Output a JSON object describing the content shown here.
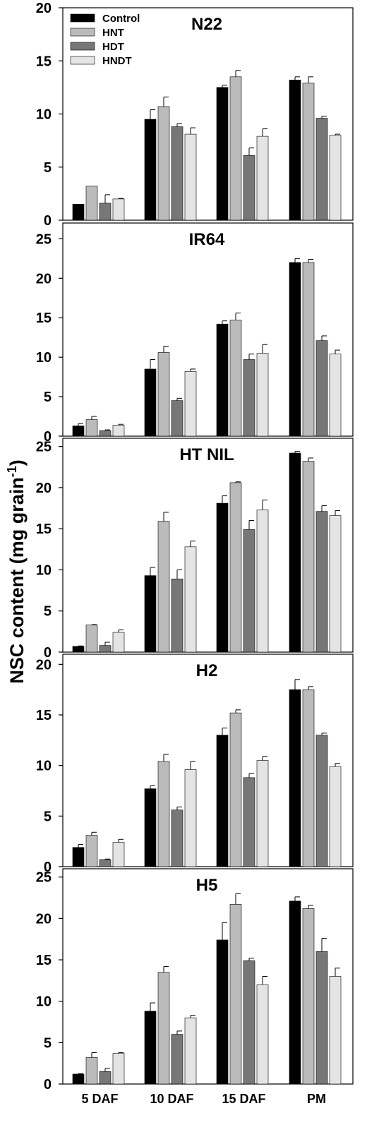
{
  "figure": {
    "ylabel_main": "NSC content (mg grain",
    "ylabel_sup": "-1",
    "ylabel_close": ")"
  },
  "chart_data": [
    {
      "type": "bar",
      "title": "N22",
      "categories": [
        "5 DAF",
        "10 DAF",
        "15 DAF",
        "PM"
      ],
      "ylim": [
        0,
        20
      ],
      "yticks": [
        0,
        5,
        10,
        15,
        20
      ],
      "legend": "top-left",
      "series": [
        {
          "name": "Control",
          "color": "#000000",
          "values": [
            1.5,
            9.5,
            12.5,
            13.2
          ],
          "errors": [
            0,
            0.9,
            0.2,
            0.3
          ]
        },
        {
          "name": "HNT",
          "color": "#bbbbbb",
          "values": [
            3.2,
            10.7,
            13.5,
            12.9
          ],
          "errors": [
            0,
            0.9,
            0.6,
            0.6
          ]
        },
        {
          "name": "HDT",
          "color": "#777777",
          "values": [
            1.6,
            8.8,
            6.1,
            9.6
          ],
          "errors": [
            0.8,
            0.3,
            0.7,
            0.2
          ]
        },
        {
          "name": "HNDT",
          "color": "#e4e4e4",
          "values": [
            2.0,
            8.1,
            7.9,
            8.0
          ],
          "errors": [
            0.05,
            0.6,
            0.7,
            0.1
          ]
        }
      ]
    },
    {
      "type": "bar",
      "title": "IR64",
      "categories": [
        "5 DAF",
        "10 DAF",
        "15 DAF",
        "PM"
      ],
      "ylim": [
        0,
        27
      ],
      "yticks": [
        0,
        5,
        10,
        15,
        20,
        25
      ],
      "series": [
        {
          "name": "Control",
          "color": "#000000",
          "values": [
            1.3,
            8.5,
            14.2,
            22.0
          ],
          "errors": [
            0.3,
            1.2,
            0.4,
            0.5
          ]
        },
        {
          "name": "HNT",
          "color": "#bbbbbb",
          "values": [
            2.1,
            10.6,
            14.7,
            22.0
          ],
          "errors": [
            0.4,
            0.8,
            0.9,
            0.4
          ]
        },
        {
          "name": "HDT",
          "color": "#777777",
          "values": [
            0.7,
            4.5,
            9.7,
            12.1
          ],
          "errors": [
            0.1,
            0.3,
            0.7,
            0.6
          ]
        },
        {
          "name": "HNDT",
          "color": "#e4e4e4",
          "values": [
            1.4,
            8.2,
            10.5,
            10.4
          ],
          "errors": [
            0.1,
            0.3,
            1.1,
            0.5
          ]
        }
      ]
    },
    {
      "type": "bar",
      "title": "HT NIL",
      "categories": [
        "5 DAF",
        "10 DAF",
        "15 DAF",
        "PM"
      ],
      "ylim": [
        0,
        26
      ],
      "yticks": [
        0,
        5,
        10,
        15,
        20,
        25
      ],
      "series": [
        {
          "name": "Control",
          "color": "#000000",
          "values": [
            0.7,
            9.3,
            18.1,
            24.2
          ],
          "errors": [
            0.05,
            1.0,
            0.9,
            0.2
          ]
        },
        {
          "name": "HNT",
          "color": "#bbbbbb",
          "values": [
            3.3,
            15.9,
            20.6,
            23.2
          ],
          "errors": [
            0.05,
            1.1,
            0.1,
            0.4
          ]
        },
        {
          "name": "HDT",
          "color": "#777777",
          "values": [
            0.8,
            8.9,
            14.9,
            17.1
          ],
          "errors": [
            0.4,
            1.1,
            1.1,
            0.7
          ]
        },
        {
          "name": "HNDT",
          "color": "#e4e4e4",
          "values": [
            2.4,
            12.8,
            17.3,
            16.6
          ],
          "errors": [
            0.3,
            0.7,
            1.2,
            0.6
          ]
        }
      ]
    },
    {
      "type": "bar",
      "title": "H2",
      "categories": [
        "5 DAF",
        "10 DAF",
        "15 DAF",
        "PM"
      ],
      "ylim": [
        0,
        21
      ],
      "yticks": [
        0,
        5,
        10,
        15,
        20
      ],
      "series": [
        {
          "name": "Control",
          "color": "#000000",
          "values": [
            1.9,
            7.7,
            13.0,
            17.5
          ],
          "errors": [
            0.3,
            0.3,
            0.7,
            1.0
          ]
        },
        {
          "name": "HNT",
          "color": "#bbbbbb",
          "values": [
            3.1,
            10.4,
            15.2,
            17.5
          ],
          "errors": [
            0.3,
            0.7,
            0.3,
            0.3
          ]
        },
        {
          "name": "HDT",
          "color": "#777777",
          "values": [
            0.7,
            5.6,
            8.8,
            13.0
          ],
          "errors": [
            0.05,
            0.3,
            0.4,
            0.2
          ]
        },
        {
          "name": "HNDT",
          "color": "#e4e4e4",
          "values": [
            2.4,
            9.6,
            10.5,
            9.9
          ],
          "errors": [
            0.3,
            0.8,
            0.4,
            0.3
          ]
        }
      ]
    },
    {
      "type": "bar",
      "title": "H5",
      "categories": [
        "5 DAF",
        "10 DAF",
        "15 DAF",
        "PM"
      ],
      "ylim": [
        0,
        26
      ],
      "yticks": [
        0,
        5,
        10,
        15,
        20,
        25
      ],
      "series": [
        {
          "name": "Control",
          "color": "#000000",
          "values": [
            1.2,
            8.8,
            17.4,
            22.1
          ],
          "errors": [
            0.05,
            1.0,
            2.1,
            0.5
          ]
        },
        {
          "name": "HNT",
          "color": "#bbbbbb",
          "values": [
            3.2,
            13.5,
            21.7,
            21.2
          ],
          "errors": [
            0.6,
            0.7,
            1.3,
            0.4
          ]
        },
        {
          "name": "HDT",
          "color": "#777777",
          "values": [
            1.5,
            6.0,
            14.9,
            16.0
          ],
          "errors": [
            0.4,
            0.4,
            0.3,
            1.6
          ]
        },
        {
          "name": "HNDT",
          "color": "#e4e4e4",
          "values": [
            3.7,
            8.0,
            12.0,
            13.0
          ],
          "errors": [
            0.1,
            0.3,
            1.0,
            1.0
          ]
        }
      ]
    }
  ]
}
